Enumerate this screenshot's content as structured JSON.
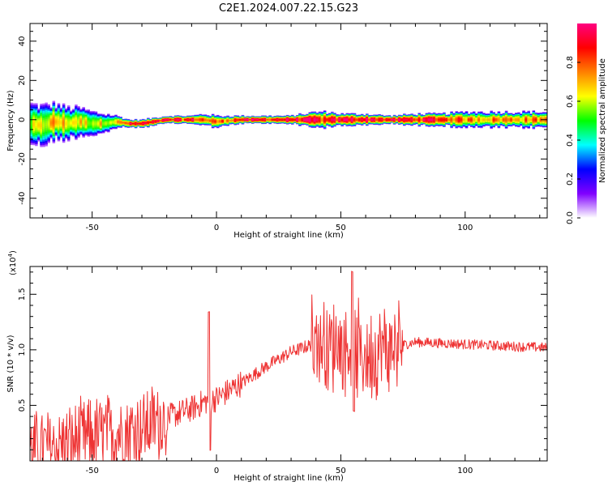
{
  "figure": {
    "title": "C2E1.2024.007.22.15.G23"
  },
  "chart_data": [
    {
      "type": "heatmap",
      "title": "C2E1.2024.007.22.15.G23",
      "xlabel": "Height of straight line (km)",
      "ylabel": "Frequency (Hz)",
      "xlim": [
        -75,
        133
      ],
      "ylim": [
        -50,
        49
      ],
      "xticks": [
        -50,
        0,
        50,
        100
      ],
      "yticks": [
        -40,
        -20,
        0,
        20,
        40
      ],
      "colorbar": {
        "label": "Normalized spectral amplitude",
        "range": [
          0.0,
          1.0
        ],
        "ticks": [
          "0.0",
          "0.2",
          "0.4",
          "0.6",
          "0.8"
        ],
        "colormap": [
          "#ffffff",
          "#8000ff",
          "#0000ff",
          "#00ffff",
          "#00ff00",
          "#ffff00",
          "#ff8000",
          "#ff0000",
          "#ff0080"
        ]
      },
      "ridge": {
        "x": [
          -75,
          -70,
          -65,
          -60,
          -55,
          -50,
          -45,
          -40,
          -35,
          -30,
          -25,
          -20,
          -15,
          -10,
          -5,
          0,
          10,
          20,
          30,
          35,
          40,
          45,
          50,
          60,
          70,
          80,
          90,
          100,
          110,
          120,
          133
        ],
        "frequency": [
          -2,
          -3,
          -1,
          -2,
          -1,
          -2,
          -2,
          -1,
          -2,
          -2,
          -1,
          0,
          0,
          0,
          0,
          -1,
          0,
          0,
          0,
          0,
          0,
          0,
          0,
          0,
          0,
          0,
          0,
          0,
          0,
          0,
          0
        ],
        "halfwidth": [
          10,
          10,
          9,
          8,
          7,
          6,
          5,
          3,
          2,
          2,
          2,
          2,
          2,
          2,
          3,
          3,
          2,
          2,
          2,
          3,
          4,
          4,
          3,
          3,
          2,
          3,
          3,
          4,
          4,
          4,
          4
        ],
        "peak_amplitude": [
          0.5,
          0.55,
          0.65,
          0.6,
          0.6,
          0.55,
          0.6,
          0.6,
          0.8,
          0.85,
          0.8,
          0.85,
          0.8,
          0.85,
          0.75,
          0.7,
          0.85,
          0.85,
          0.9,
          0.9,
          0.85,
          0.75,
          0.9,
          0.9,
          0.85,
          0.85,
          0.85,
          0.7,
          0.7,
          0.7,
          0.7
        ]
      }
    },
    {
      "type": "line",
      "xlabel": "Height of straight line (km)",
      "ylabel": "SNR (10 * v/v)",
      "multiplier_label": "(x10",
      "multiplier_exponent": "4",
      "xlim": [
        -75,
        133
      ],
      "ylim": [
        0,
        17500
      ],
      "xticks": [
        -50,
        0,
        50,
        100
      ],
      "yticks": [
        5000,
        10000,
        15000
      ],
      "ytick_labels": [
        "0.5",
        "1.0",
        "1.5"
      ],
      "series": [
        {
          "color": "#ee3333",
          "trend_x": [
            -75,
            -60,
            -50,
            -40,
            -30,
            -20,
            -10,
            -5,
            0,
            10,
            20,
            30,
            40,
            50,
            60,
            70,
            80,
            90,
            100,
            110,
            120,
            133
          ],
          "trend_y": [
            1000,
            1500,
            2200,
            2600,
            3000,
            3900,
            4700,
            5300,
            5600,
            7000,
            8500,
            9800,
            10600,
            10500,
            9500,
            10200,
            10700,
            10600,
            10500,
            10400,
            10300,
            10200
          ]
        }
      ]
    }
  ]
}
